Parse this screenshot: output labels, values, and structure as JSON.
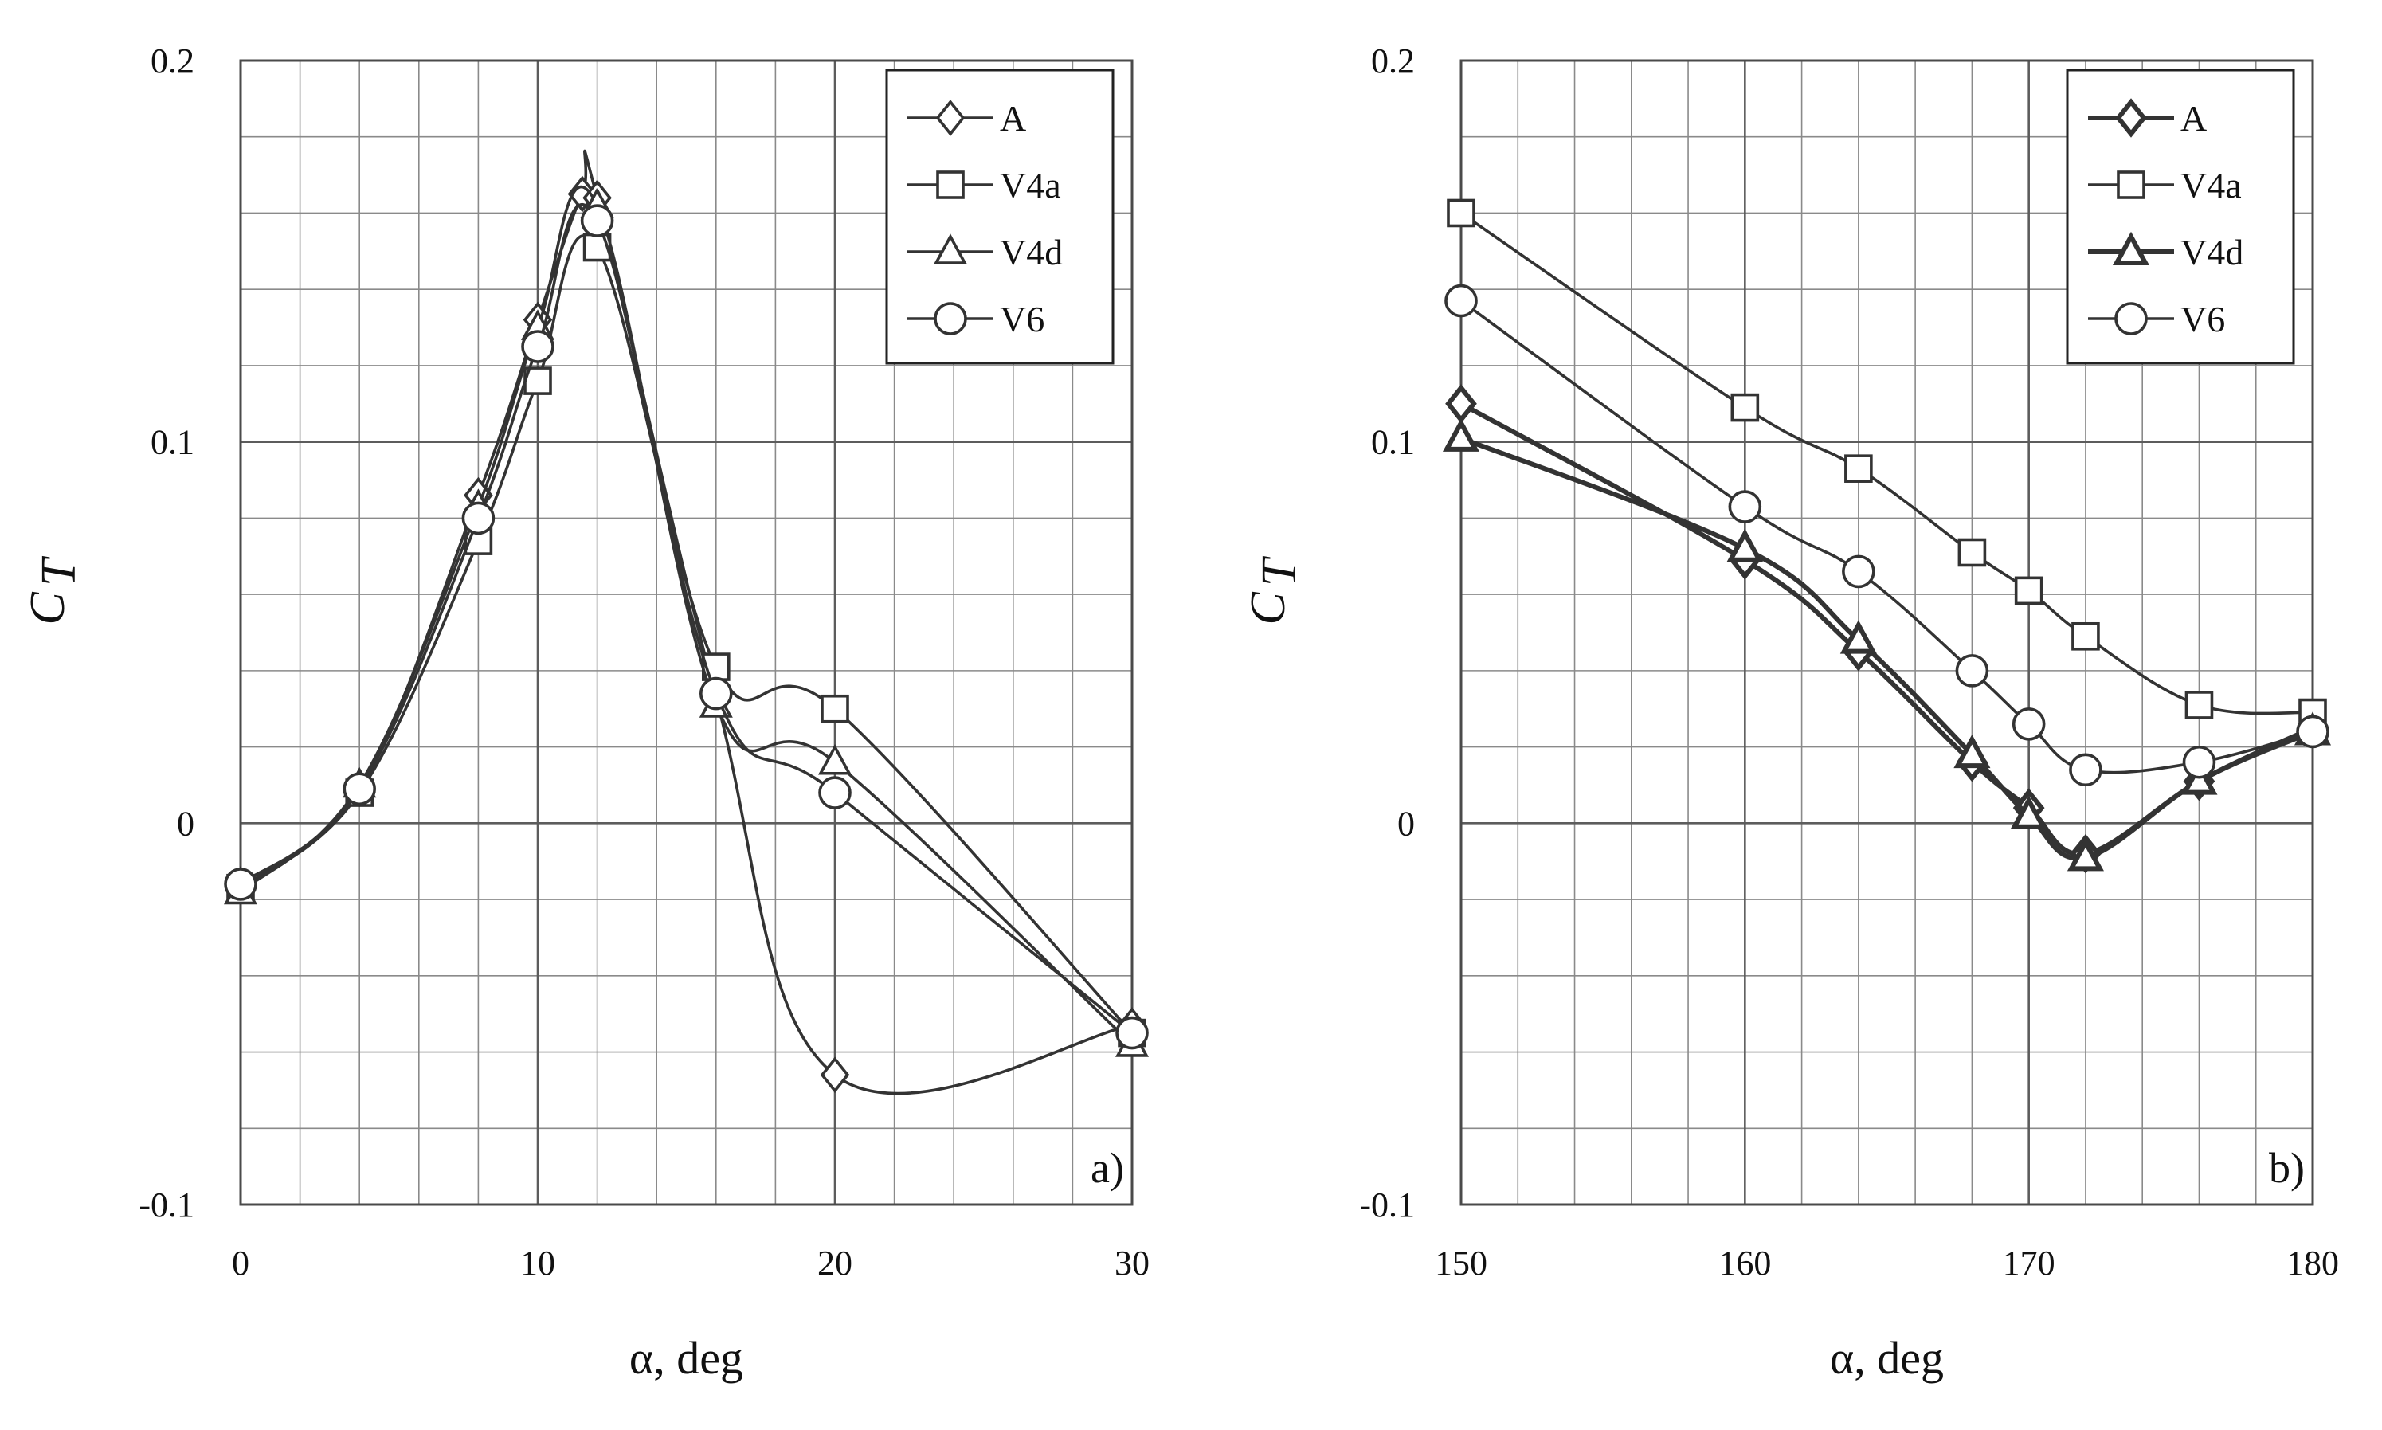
{
  "figure": {
    "colors": {
      "grid": "#8a8a8a",
      "frame": "#4a4a4a",
      "series": "#333333",
      "background": "#ffffff"
    },
    "panels_order": [
      "a",
      "b"
    ]
  },
  "chart_data": [
    {
      "type": "line",
      "panel_label": "a)",
      "xlabel": "α, deg",
      "ylabel": "C",
      "ylabel_sub": "T",
      "xlim": [
        0,
        30
      ],
      "ylim": [
        -0.1,
        0.2
      ],
      "xticks": [
        0,
        10,
        20,
        30
      ],
      "yticks": [
        -0.1,
        0,
        0.1,
        0.2
      ],
      "xtick_labels": [
        "0",
        "10",
        "20",
        "30"
      ],
      "ytick_labels": [
        "-0.1",
        "0",
        "0.1",
        "0.2"
      ],
      "minor_grid": {
        "x_step": 2,
        "y_step": 0.02
      },
      "legend": {
        "position": "top-right",
        "entries": [
          "A",
          "V4a",
          "V4d",
          "V6"
        ]
      },
      "series": [
        {
          "name": "A",
          "marker": "diamond",
          "bold": false,
          "x": [
            0,
            4,
            8,
            10,
            11.5,
            12,
            16,
            20,
            30
          ],
          "y": [
            -0.016,
            0.009,
            0.086,
            0.132,
            0.165,
            0.164,
            0.033,
            -0.066,
            -0.053
          ]
        },
        {
          "name": "V4a",
          "marker": "square",
          "bold": false,
          "x": [
            0,
            4,
            8,
            10,
            12,
            16,
            20,
            30
          ],
          "y": [
            -0.017,
            0.008,
            0.074,
            0.116,
            0.151,
            0.041,
            0.03,
            -0.055
          ]
        },
        {
          "name": "V4d",
          "marker": "triangle",
          "bold": false,
          "x": [
            0,
            4,
            8,
            10,
            12,
            16,
            20,
            30
          ],
          "y": [
            -0.018,
            0.01,
            0.083,
            0.13,
            0.162,
            0.031,
            0.016,
            -0.058
          ]
        },
        {
          "name": "V6",
          "marker": "circle",
          "bold": false,
          "x": [
            0,
            4,
            8,
            10,
            12,
            16,
            20,
            30
          ],
          "y": [
            -0.016,
            0.009,
            0.08,
            0.125,
            0.158,
            0.034,
            0.008,
            -0.055
          ]
        }
      ]
    },
    {
      "type": "line",
      "panel_label": "b)",
      "xlabel": "α, deg",
      "ylabel": "C",
      "ylabel_sub": "T",
      "xlim": [
        150,
        180
      ],
      "ylim": [
        -0.1,
        0.2
      ],
      "xticks": [
        150,
        160,
        170,
        180
      ],
      "yticks": [
        -0.1,
        0,
        0.1,
        0.2
      ],
      "xtick_labels": [
        "150",
        "160",
        "170",
        "180"
      ],
      "ytick_labels": [
        "-0.1",
        "0",
        "0.1",
        "0.2"
      ],
      "minor_grid": {
        "x_step": 2,
        "y_step": 0.02
      },
      "legend": {
        "position": "top-right",
        "entries": [
          "A",
          "V4a",
          "V4d",
          "V6"
        ]
      },
      "series": [
        {
          "name": "A",
          "marker": "diamond",
          "bold": true,
          "x": [
            150,
            160,
            164,
            168,
            170,
            172,
            176,
            180
          ],
          "y": [
            0.11,
            0.069,
            0.045,
            0.016,
            0.004,
            -0.008,
            0.011,
            0.025
          ]
        },
        {
          "name": "V4a",
          "marker": "square",
          "bold": false,
          "x": [
            150,
            160,
            164,
            168,
            170,
            172,
            176,
            180
          ],
          "y": [
            0.16,
            0.109,
            0.093,
            0.071,
            0.061,
            0.049,
            0.031,
            0.029
          ]
        },
        {
          "name": "V4d",
          "marker": "triangle",
          "bold": true,
          "x": [
            150,
            160,
            164,
            168,
            170,
            172,
            176,
            180
          ],
          "y": [
            0.101,
            0.072,
            0.048,
            0.018,
            0.002,
            -0.009,
            0.011,
            0.024
          ]
        },
        {
          "name": "V6",
          "marker": "circle",
          "bold": false,
          "x": [
            150,
            160,
            164,
            168,
            170,
            172,
            176,
            180
          ],
          "y": [
            0.137,
            0.083,
            0.066,
            0.04,
            0.026,
            0.014,
            0.016,
            0.024
          ]
        }
      ]
    }
  ]
}
